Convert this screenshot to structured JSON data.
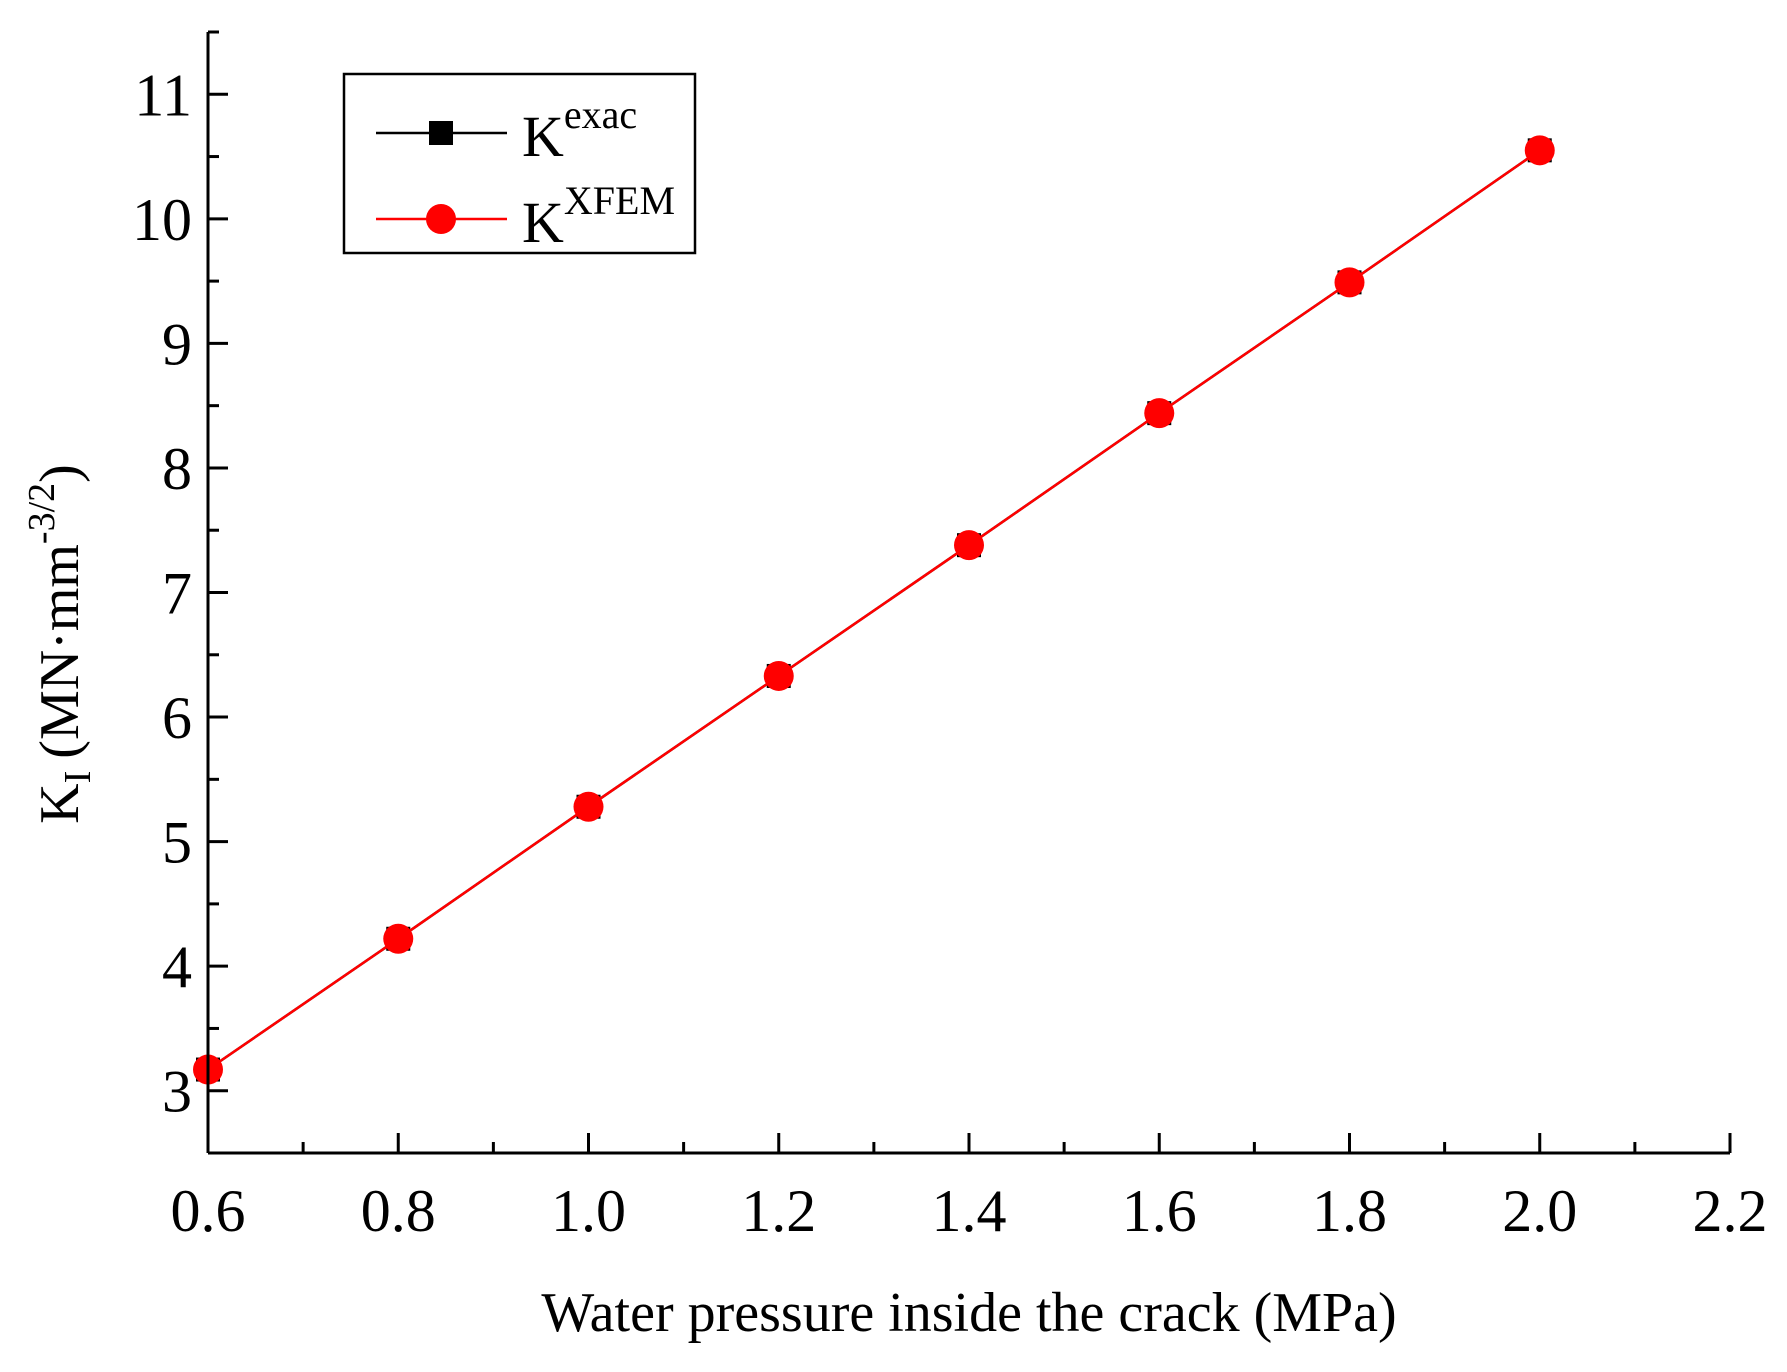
{
  "chart_data": {
    "type": "line",
    "title": "",
    "xlabel": "Water pressure inside the crack (MPa)",
    "ylabel": {
      "base": "K",
      "sub": "I",
      "unit_open": "(MN·mm",
      "sup": "-3/2",
      "unit_close": ")"
    },
    "x": [
      0.6,
      0.8,
      1.0,
      1.2,
      1.4,
      1.6,
      1.8,
      2.0
    ],
    "series": [
      {
        "name_base": "K",
        "name_sup": "exac",
        "color": "#000000",
        "marker": "square",
        "values": [
          3.17,
          4.22,
          5.28,
          6.33,
          7.38,
          8.44,
          9.49,
          10.55
        ]
      },
      {
        "name_base": "K",
        "name_sup": "XFEM",
        "color": "#ff0000",
        "marker": "circle",
        "values": [
          3.17,
          4.22,
          5.28,
          6.33,
          7.38,
          8.44,
          9.49,
          10.55
        ]
      }
    ],
    "xlim": [
      0.6,
      2.2
    ],
    "ylim": [
      2.5,
      11.5
    ],
    "x_ticks": [
      "0.6",
      "0.8",
      "1.0",
      "1.2",
      "1.4",
      "1.6",
      "1.8",
      "2.0",
      "2.2"
    ],
    "y_ticks": [
      "3",
      "4",
      "5",
      "6",
      "7",
      "8",
      "9",
      "10",
      "11"
    ],
    "grid": false,
    "legend_position": "top-left"
  }
}
